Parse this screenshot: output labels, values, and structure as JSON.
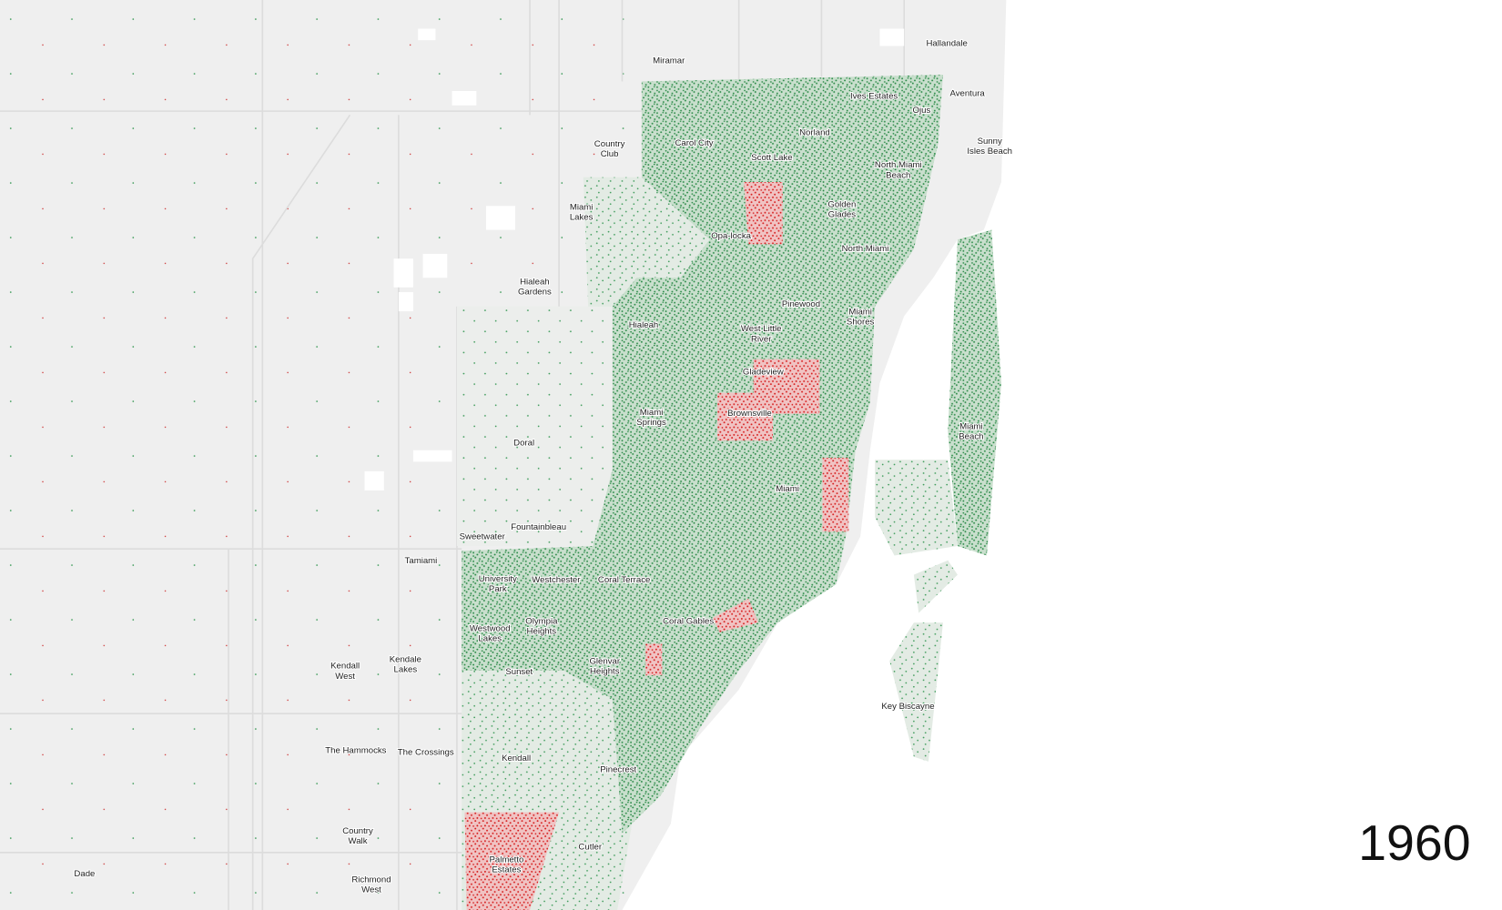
{
  "labels": [
    {
      "lines": [
        "Hallandale"
      ]
    },
    {
      "lines": [
        "Miramar"
      ]
    },
    {
      "lines": [
        "Ives Estates"
      ]
    },
    {
      "lines": [
        "Aventura"
      ]
    },
    {
      "lines": [
        "Ojus"
      ]
    },
    {
      "lines": [
        "Norland"
      ]
    },
    {
      "lines": [
        "Carol City"
      ]
    },
    {
      "lines": [
        "Country",
        "Club"
      ]
    },
    {
      "lines": [
        "Sunny",
        "Isles Beach"
      ]
    },
    {
      "lines": [
        "Scott Lake"
      ]
    },
    {
      "lines": [
        "North Miami",
        "Beach"
      ]
    },
    {
      "lines": [
        "Golden",
        "Glades"
      ]
    },
    {
      "lines": [
        "Miami",
        "Lakes"
      ]
    },
    {
      "lines": [
        "Opa-locka"
      ]
    },
    {
      "lines": [
        "North Miami"
      ]
    },
    {
      "lines": [
        "Hialeah",
        "Gardens"
      ]
    },
    {
      "lines": [
        "Pinewood"
      ]
    },
    {
      "lines": [
        "Miami",
        "Shores"
      ]
    },
    {
      "lines": [
        "Hialeah"
      ]
    },
    {
      "lines": [
        "West Little",
        "River"
      ]
    },
    {
      "lines": [
        "Gladeview"
      ]
    },
    {
      "lines": [
        "Brownsville"
      ]
    },
    {
      "lines": [
        "Miami",
        "Springs"
      ]
    },
    {
      "lines": [
        "Miami",
        "Beach"
      ]
    },
    {
      "lines": [
        "Doral"
      ]
    },
    {
      "lines": [
        "Miami"
      ]
    },
    {
      "lines": [
        "Fountainbleau"
      ]
    },
    {
      "lines": [
        "Sweetwater"
      ]
    },
    {
      "lines": [
        "Tamiami"
      ]
    },
    {
      "lines": [
        "University",
        "Park"
      ]
    },
    {
      "lines": [
        "Westchester"
      ]
    },
    {
      "lines": [
        "Coral Terrace"
      ]
    },
    {
      "lines": [
        "Olympia",
        "Heights"
      ]
    },
    {
      "lines": [
        "Coral Gables"
      ]
    },
    {
      "lines": [
        "Westwood",
        "Lakes"
      ]
    },
    {
      "lines": [
        "Kendall",
        "West"
      ]
    },
    {
      "lines": [
        "Kendale",
        "Lakes"
      ]
    },
    {
      "lines": [
        "Sunset"
      ]
    },
    {
      "lines": [
        "Glenvar",
        "Heights"
      ]
    },
    {
      "lines": [
        "Key Biscayne"
      ]
    },
    {
      "lines": [
        "The Hammocks"
      ]
    },
    {
      "lines": [
        "The Crossings"
      ]
    },
    {
      "lines": [
        "Kendall"
      ]
    },
    {
      "lines": [
        "Pinecrest"
      ]
    },
    {
      "lines": [
        "Country",
        "Walk"
      ]
    },
    {
      "lines": [
        "Cutler"
      ]
    },
    {
      "lines": [
        "Dade"
      ]
    },
    {
      "lines": [
        "Richmond",
        "West"
      ]
    },
    {
      "lines": [
        "Palmetto",
        "Estates"
      ]
    }
  ],
  "year": "1960"
}
